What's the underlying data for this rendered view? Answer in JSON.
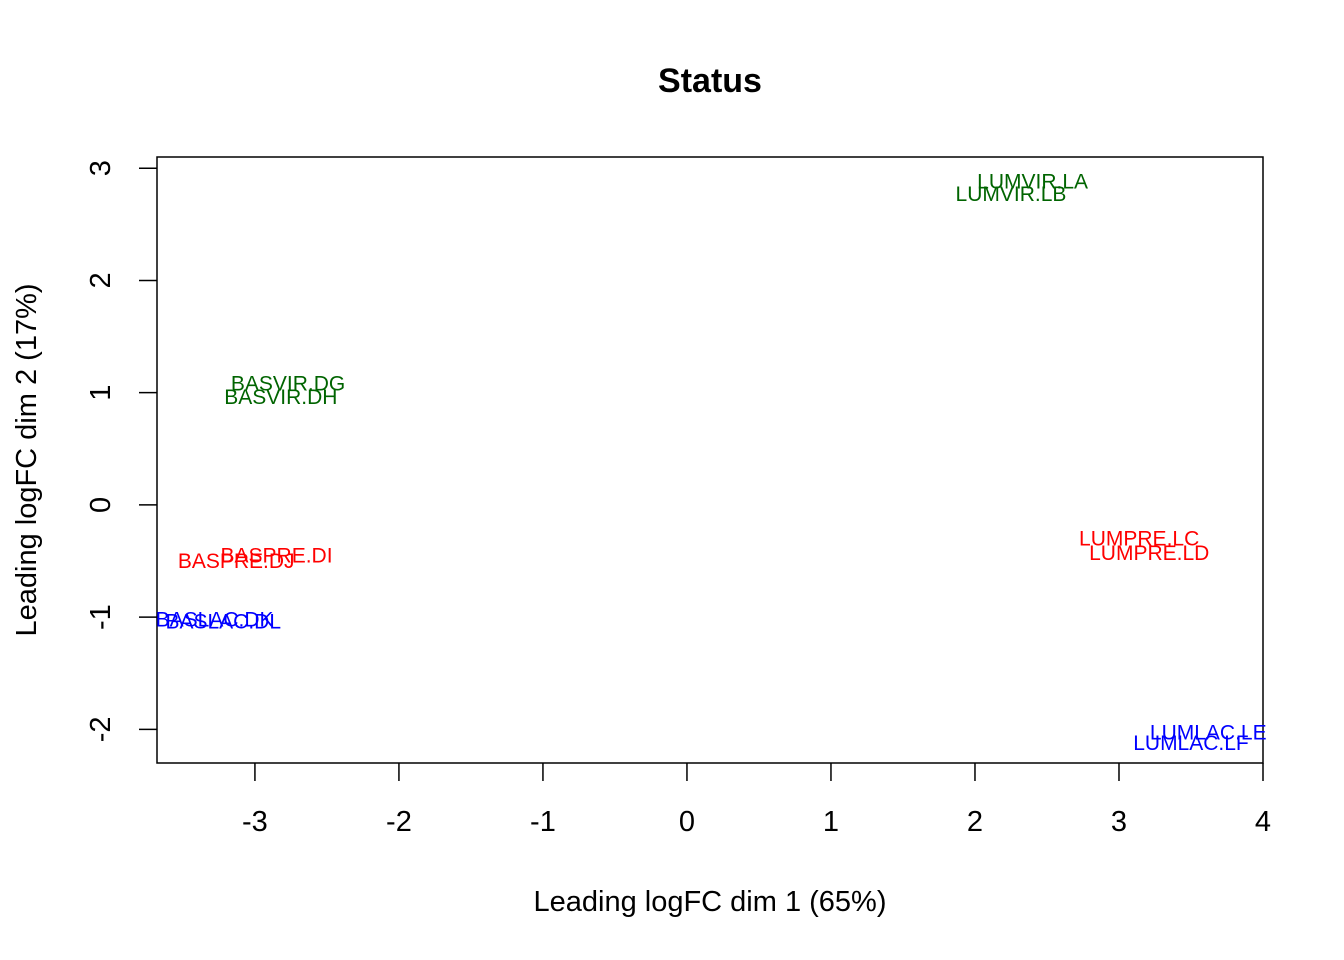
{
  "chart_data": {
    "type": "scatter",
    "title": "Status",
    "xlabel": "Leading logFC dim 1 (65%)",
    "ylabel": "Leading logFC dim 2 (17%)",
    "xlim": [
      -3.68,
      4.0
    ],
    "ylim": [
      -2.3,
      3.1
    ],
    "xticks": [
      -3,
      -2,
      -1,
      0,
      1,
      2,
      3,
      4
    ],
    "yticks": [
      -2,
      -1,
      0,
      1,
      2,
      3
    ],
    "grid": false,
    "legend": "none",
    "colors": {
      "virgin": "#006400",
      "pregnant": "#ff0000",
      "lactate": "#0000ff"
    },
    "points": [
      {
        "label": "LUMVIR.LA",
        "x": 2.4,
        "y": 2.88,
        "group": "virgin"
      },
      {
        "label": "LUMVIR.LB",
        "x": 2.25,
        "y": 2.77,
        "group": "virgin"
      },
      {
        "label": "BASVIR.DG",
        "x": -2.77,
        "y": 1.08,
        "group": "virgin"
      },
      {
        "label": "BASVIR.DH",
        "x": -2.82,
        "y": 0.96,
        "group": "virgin"
      },
      {
        "label": "LUMPRE.LC",
        "x": 3.14,
        "y": -0.3,
        "group": "pregnant"
      },
      {
        "label": "LUMPRE.LD",
        "x": 3.21,
        "y": -0.43,
        "group": "pregnant"
      },
      {
        "label": "BASPRE.DI",
        "x": -2.85,
        "y": -0.45,
        "group": "pregnant"
      },
      {
        "label": "BASPRE.DJ",
        "x": -3.13,
        "y": -0.5,
        "group": "pregnant"
      },
      {
        "label": "BASLAC.DK",
        "x": -3.28,
        "y": -1.02,
        "group": "lactate"
      },
      {
        "label": "BASLAC.DL",
        "x": -3.22,
        "y": -1.04,
        "group": "lactate"
      },
      {
        "label": "LUMLAC.LE",
        "x": 3.62,
        "y": -2.03,
        "group": "lactate"
      },
      {
        "label": "LUMLAC.LF",
        "x": 3.5,
        "y": -2.12,
        "group": "lactate"
      }
    ]
  }
}
